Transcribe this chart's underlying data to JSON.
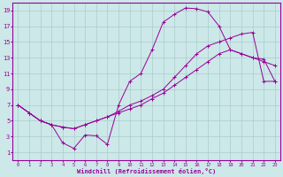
{
  "xlabel": "Windchill (Refroidissement éolien,°C)",
  "bg_color": "#cce8e8",
  "line_color": "#990099",
  "grid_color": "#aacccc",
  "xlim": [
    -0.5,
    23.5
  ],
  "ylim": [
    0,
    20
  ],
  "xticks": [
    0,
    1,
    2,
    3,
    4,
    5,
    6,
    7,
    8,
    9,
    10,
    11,
    12,
    13,
    14,
    15,
    16,
    17,
    18,
    19,
    20,
    21,
    22,
    23
  ],
  "yticks": [
    1,
    3,
    5,
    7,
    9,
    11,
    13,
    15,
    17,
    19
  ],
  "series1_x": [
    0,
    1,
    2,
    3,
    4,
    5,
    6,
    7,
    8,
    9,
    10,
    11,
    12,
    13,
    14,
    15,
    16,
    17,
    18,
    19,
    20,
    21,
    22,
    23
  ],
  "series1_y": [
    7.0,
    6.0,
    5.0,
    4.5,
    2.2,
    1.5,
    3.2,
    3.1,
    2.0,
    7.0,
    10.0,
    11.0,
    14.0,
    17.5,
    18.5,
    19.3,
    19.2,
    18.8,
    17.0,
    14.0,
    13.5,
    13.0,
    12.5,
    12.0
  ],
  "series2_x": [
    0,
    1,
    2,
    3,
    4,
    5,
    6,
    7,
    8,
    9,
    10,
    11,
    12,
    13,
    14,
    15,
    16,
    17,
    18,
    19,
    20,
    21,
    22,
    23
  ],
  "series2_y": [
    7.0,
    6.0,
    5.0,
    4.5,
    4.2,
    4.0,
    4.5,
    5.0,
    5.5,
    6.0,
    6.5,
    7.0,
    7.8,
    8.5,
    9.5,
    10.5,
    11.5,
    12.5,
    13.5,
    14.0,
    13.5,
    13.0,
    12.8,
    10.0
  ],
  "series3_x": [
    0,
    1,
    2,
    3,
    4,
    5,
    6,
    7,
    8,
    9,
    10,
    11,
    12,
    13,
    14,
    15,
    16,
    17,
    18,
    19,
    20,
    21,
    22,
    23
  ],
  "series3_y": [
    7.0,
    6.0,
    5.0,
    4.5,
    4.2,
    4.0,
    4.5,
    5.0,
    5.5,
    6.2,
    7.0,
    7.5,
    8.2,
    9.0,
    10.5,
    12.0,
    13.5,
    14.5,
    15.0,
    15.5,
    16.0,
    16.2,
    10.0,
    10.0
  ]
}
